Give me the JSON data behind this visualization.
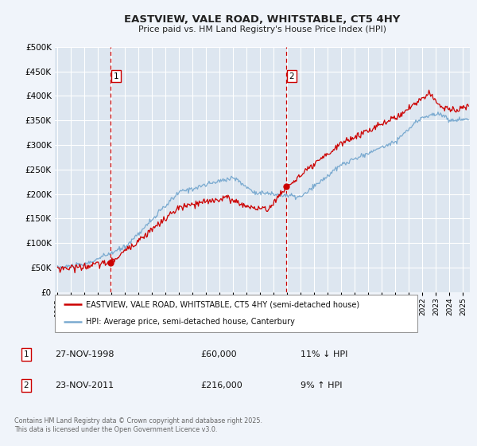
{
  "title": "EASTVIEW, VALE ROAD, WHITSTABLE, CT5 4HY",
  "subtitle": "Price paid vs. HM Land Registry's House Price Index (HPI)",
  "red_label": "EASTVIEW, VALE ROAD, WHITSTABLE, CT5 4HY (semi-detached house)",
  "blue_label": "HPI: Average price, semi-detached house, Canterbury",
  "annotation1_date": "27-NOV-1998",
  "annotation1_price": "£60,000",
  "annotation1_hpi": "11% ↓ HPI",
  "annotation2_date": "23-NOV-2011",
  "annotation2_price": "£216,000",
  "annotation2_hpi": "9% ↑ HPI",
  "footer": "Contains HM Land Registry data © Crown copyright and database right 2025.\nThis data is licensed under the Open Government Licence v3.0.",
  "vline1_x": 1998.92,
  "vline2_x": 2011.92,
  "sale1_x": 1998.92,
  "sale1_y": 60000,
  "sale2_x": 2011.92,
  "sale2_y": 216000,
  "ylim": [
    0,
    500000
  ],
  "xlim": [
    1994.8,
    2025.5
  ],
  "background_color": "#f0f4fa",
  "plot_bg": "#dde6f0",
  "grid_color": "#ffffff",
  "red_color": "#cc0000",
  "blue_color": "#7aaad0"
}
